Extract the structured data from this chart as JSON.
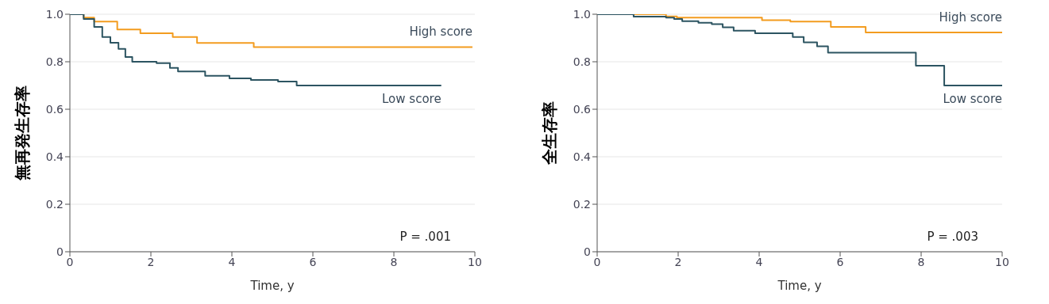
{
  "chart_data": [
    {
      "type": "step",
      "ylabel": "無再発生存率",
      "xlabel": "Time, y",
      "xlim": [
        0,
        10
      ],
      "xticks": [
        0,
        2,
        4,
        6,
        8,
        10
      ],
      "ylim": [
        0,
        1
      ],
      "yticks": [
        0,
        0.2,
        0.4,
        0.6,
        0.8,
        {
          "value": 1,
          "label": "1.0"
        }
      ],
      "grid": "y",
      "legend": false,
      "annotations": [
        "P = .001"
      ],
      "series": [
        {
          "name": "High score",
          "color": "#f39c1f",
          "x": [
            0,
            0.34,
            0.6,
            1.17,
            1.74,
            2.54,
            3.14,
            4.54,
            9.94
          ],
          "values": [
            1,
            0.986,
            0.969,
            0.936,
            0.92,
            0.904,
            0.879,
            0.862,
            0.862
          ]
        },
        {
          "name": "Low score",
          "color": "#2c5461",
          "x": [
            0,
            0.34,
            0.6,
            0.8,
            1.0,
            1.2,
            1.37,
            1.54,
            2.14,
            2.47,
            2.67,
            3.34,
            3.94,
            4.47,
            5.14,
            5.6,
            9.17
          ],
          "values": [
            1,
            0.98,
            0.947,
            0.904,
            0.88,
            0.854,
            0.82,
            0.8,
            0.794,
            0.774,
            0.759,
            0.741,
            0.73,
            0.723,
            0.717,
            0.7,
            0.7
          ]
        }
      ]
    },
    {
      "type": "step",
      "ylabel": "全生存率",
      "xlabel": "Time, y",
      "xlim": [
        0,
        10
      ],
      "xticks": [
        0,
        2,
        4,
        6,
        8,
        10
      ],
      "ylim": [
        0,
        1
      ],
      "yticks": [
        0,
        0.2,
        0.4,
        0.6,
        0.8,
        {
          "value": 1,
          "label": "1.0"
        }
      ],
      "grid": "y",
      "legend": false,
      "annotations": [
        "P = .003"
      ],
      "series": [
        {
          "name": "High score",
          "color": "#f39c1f",
          "x": [
            0,
            1.7,
            1.97,
            4.07,
            4.77,
            5.77,
            6.63,
            10
          ],
          "values": [
            1,
            0.991,
            0.986,
            0.975,
            0.969,
            0.947,
            0.923,
            0.923
          ]
        },
        {
          "name": "Low score",
          "color": "#2c5461",
          "x": [
            0,
            0.9,
            1.7,
            1.9,
            2.1,
            2.5,
            2.83,
            3.1,
            3.37,
            3.9,
            4.83,
            5.1,
            5.43,
            5.7,
            7.87,
            8.57,
            10
          ],
          "values": [
            1,
            0.99,
            0.986,
            0.98,
            0.971,
            0.964,
            0.958,
            0.945,
            0.931,
            0.92,
            0.904,
            0.882,
            0.865,
            0.838,
            0.783,
            0.7,
            0.7
          ]
        }
      ]
    }
  ]
}
